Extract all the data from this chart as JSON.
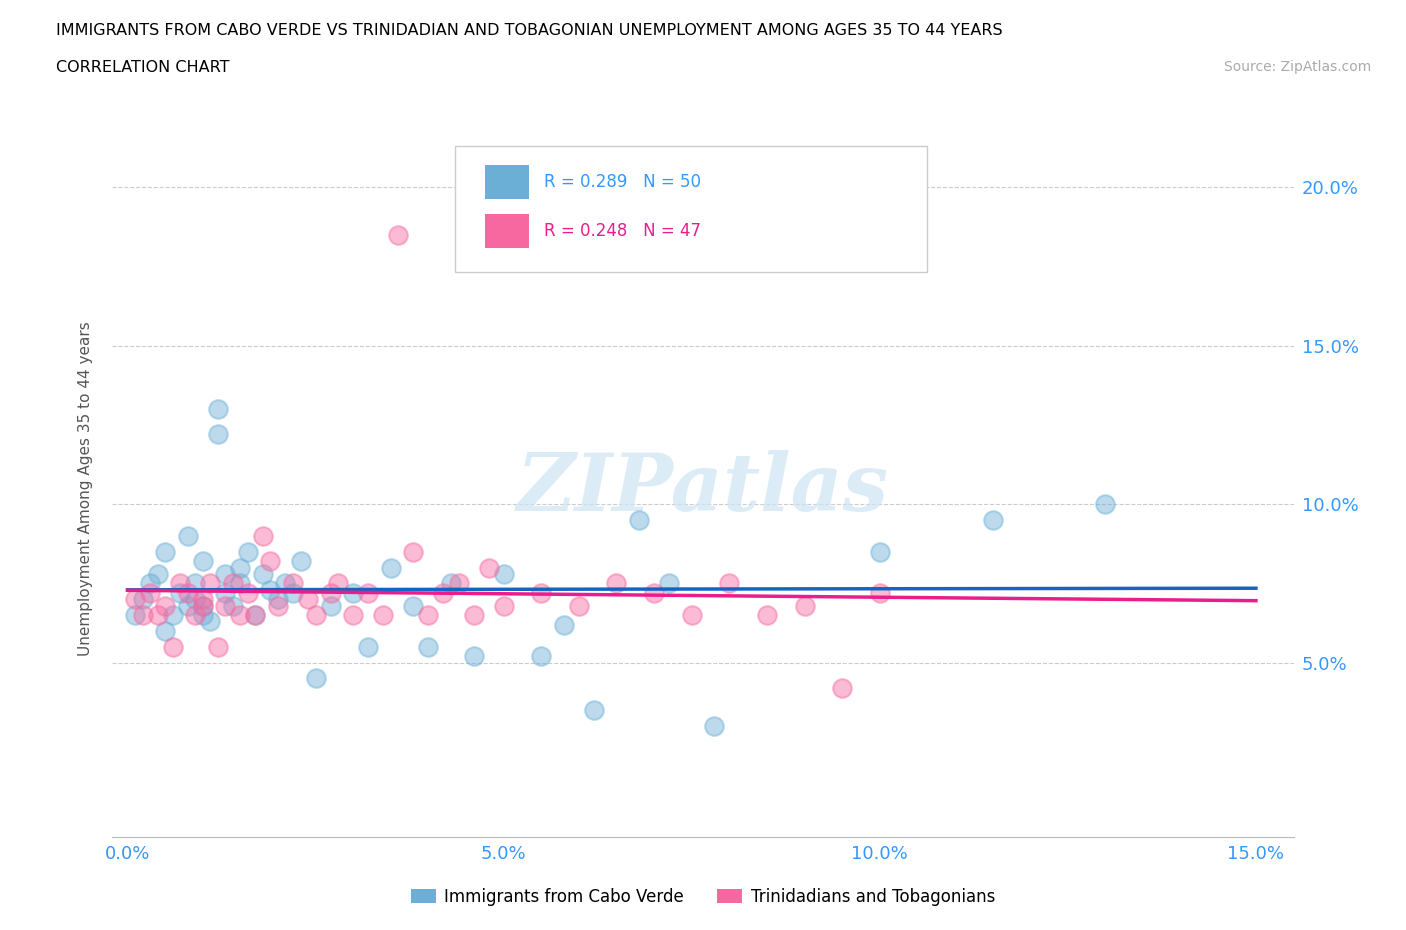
{
  "title": "IMMIGRANTS FROM CABO VERDE VS TRINIDADIAN AND TOBAGONIAN UNEMPLOYMENT AMONG AGES 35 TO 44 YEARS",
  "subtitle": "CORRELATION CHART",
  "source": "Source: ZipAtlas.com",
  "ylabel": "Unemployment Among Ages 35 to 44 years",
  "xlim": [
    -0.002,
    0.155
  ],
  "ylim": [
    -0.005,
    0.215
  ],
  "xticks": [
    0.0,
    0.05,
    0.1,
    0.15
  ],
  "yticks": [
    0.05,
    0.1,
    0.15,
    0.2
  ],
  "ytick_labels": [
    "5.0%",
    "10.0%",
    "15.0%",
    "20.0%"
  ],
  "xtick_labels": [
    "0.0%",
    "5.0%",
    "10.0%",
    "15.0%"
  ],
  "cabo_verde_color": "#6baed6",
  "trinidad_color": "#f768a1",
  "cabo_verde_R": "0.289",
  "cabo_verde_N": "50",
  "trinidad_R": "0.248",
  "trinidad_N": "47",
  "legend_label_1": "Immigrants from Cabo Verde",
  "legend_label_2": "Trinidadians and Tobagonians",
  "cabo_verde_x": [
    0.001,
    0.002,
    0.003,
    0.004,
    0.005,
    0.005,
    0.006,
    0.007,
    0.008,
    0.008,
    0.009,
    0.009,
    0.01,
    0.01,
    0.01,
    0.011,
    0.012,
    0.012,
    0.013,
    0.013,
    0.014,
    0.015,
    0.015,
    0.016,
    0.017,
    0.018,
    0.019,
    0.02,
    0.021,
    0.022,
    0.023,
    0.025,
    0.027,
    0.03,
    0.032,
    0.035,
    0.038,
    0.04,
    0.043,
    0.046,
    0.05,
    0.055,
    0.058,
    0.062,
    0.068,
    0.072,
    0.078,
    0.1,
    0.115,
    0.13
  ],
  "cabo_verde_y": [
    0.065,
    0.07,
    0.075,
    0.078,
    0.06,
    0.085,
    0.065,
    0.072,
    0.09,
    0.068,
    0.075,
    0.07,
    0.065,
    0.082,
    0.068,
    0.063,
    0.122,
    0.13,
    0.078,
    0.072,
    0.068,
    0.08,
    0.075,
    0.085,
    0.065,
    0.078,
    0.073,
    0.07,
    0.075,
    0.072,
    0.082,
    0.045,
    0.068,
    0.072,
    0.055,
    0.08,
    0.068,
    0.055,
    0.075,
    0.052,
    0.078,
    0.052,
    0.062,
    0.035,
    0.095,
    0.075,
    0.03,
    0.085,
    0.095,
    0.1
  ],
  "trinidad_x": [
    0.001,
    0.002,
    0.003,
    0.004,
    0.005,
    0.006,
    0.007,
    0.008,
    0.009,
    0.01,
    0.01,
    0.011,
    0.012,
    0.013,
    0.014,
    0.015,
    0.016,
    0.017,
    0.018,
    0.019,
    0.02,
    0.022,
    0.024,
    0.025,
    0.027,
    0.028,
    0.03,
    0.032,
    0.034,
    0.036,
    0.038,
    0.04,
    0.042,
    0.044,
    0.046,
    0.048,
    0.05,
    0.055,
    0.06,
    0.065,
    0.07,
    0.075,
    0.08,
    0.085,
    0.09,
    0.095,
    0.1
  ],
  "trinidad_y": [
    0.07,
    0.065,
    0.072,
    0.065,
    0.068,
    0.055,
    0.075,
    0.072,
    0.065,
    0.068,
    0.07,
    0.075,
    0.055,
    0.068,
    0.075,
    0.065,
    0.072,
    0.065,
    0.09,
    0.082,
    0.068,
    0.075,
    0.07,
    0.065,
    0.072,
    0.075,
    0.065,
    0.072,
    0.065,
    0.185,
    0.085,
    0.065,
    0.072,
    0.075,
    0.065,
    0.08,
    0.068,
    0.072,
    0.068,
    0.075,
    0.072,
    0.065,
    0.075,
    0.065,
    0.068,
    0.042,
    0.072
  ]
}
